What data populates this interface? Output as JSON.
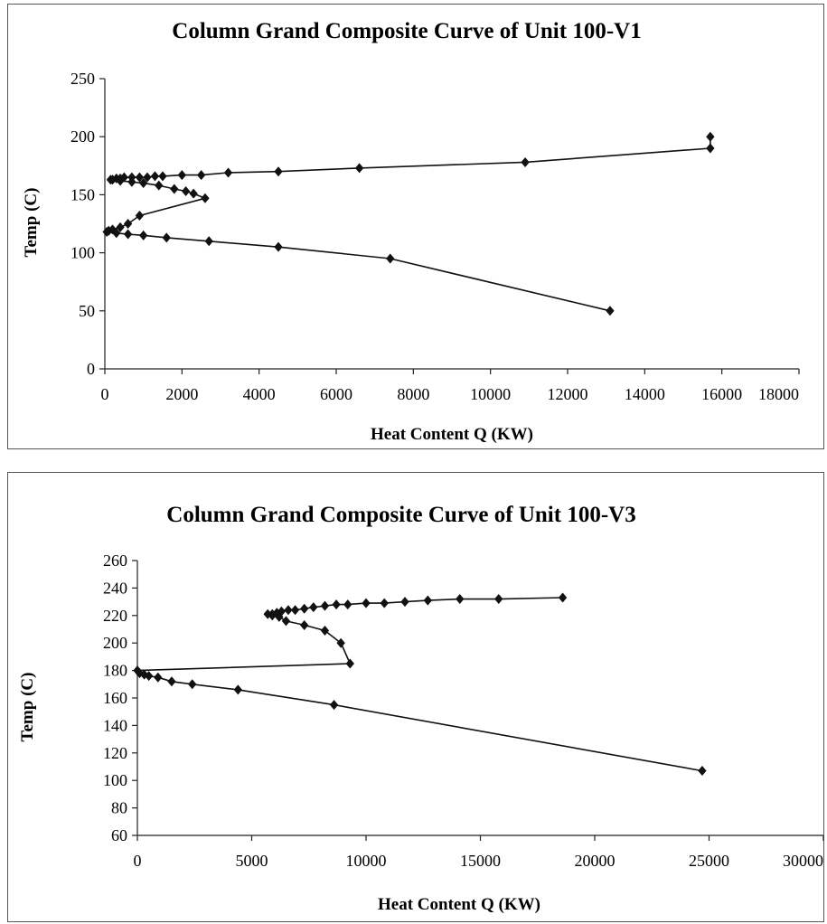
{
  "chart_data": [
    {
      "type": "line",
      "title": "Column Grand Composite Curve of Unit 100-V1",
      "xlabel": "Heat Content Q (KW)",
      "ylabel": "Temp (C)",
      "xlim": [
        0,
        18000
      ],
      "ylim": [
        0,
        250
      ],
      "xticks": [
        "0",
        "2000",
        "4000",
        "6000",
        "8000",
        "10000",
        "12000",
        "14000",
        "16000",
        "18000"
      ],
      "yticks": [
        "0",
        "50",
        "100",
        "150",
        "200",
        "250"
      ],
      "grid": false,
      "marker": "diamond",
      "series": [
        {
          "points": [
            [
              15700,
              200
            ],
            [
              15700,
              190
            ],
            [
              10900,
              178
            ],
            [
              6600,
              173
            ],
            [
              4500,
              170
            ],
            [
              3200,
              169
            ],
            [
              2500,
              167
            ],
            [
              2000,
              167
            ],
            [
              1500,
              166
            ],
            [
              1300,
              166
            ],
            [
              1100,
              165
            ],
            [
              900,
              165
            ],
            [
              700,
              165
            ],
            [
              500,
              165
            ],
            [
              400,
              164
            ],
            [
              300,
              164
            ],
            [
              200,
              163
            ],
            [
              150,
              163
            ],
            [
              400,
              162
            ],
            [
              700,
              161
            ],
            [
              1000,
              160
            ],
            [
              1400,
              158
            ],
            [
              1800,
              155
            ],
            [
              2100,
              153
            ],
            [
              2300,
              151
            ],
            [
              2600,
              147
            ],
            [
              900,
              132
            ],
            [
              600,
              125
            ],
            [
              400,
              122
            ],
            [
              200,
              120
            ],
            [
              100,
              119
            ],
            [
              50,
              118
            ],
            [
              300,
              117
            ],
            [
              600,
              116
            ],
            [
              1000,
              115
            ],
            [
              1600,
              113
            ],
            [
              2700,
              110
            ],
            [
              4500,
              105
            ],
            [
              7400,
              95
            ],
            [
              13100,
              50
            ]
          ]
        }
      ]
    },
    {
      "type": "line",
      "title": "Column Grand Composite Curve of Unit 100-V3",
      "xlabel": "Heat Content Q (KW)",
      "ylabel": "Temp (C)",
      "xlim": [
        0,
        30000
      ],
      "ylim": [
        60,
        260
      ],
      "xticks": [
        "0",
        "5000",
        "10000",
        "15000",
        "20000",
        "25000",
        "30000"
      ],
      "yticks": [
        "60",
        "80",
        "100",
        "120",
        "140",
        "160",
        "180",
        "200",
        "220",
        "240",
        "260"
      ],
      "grid": false,
      "marker": "diamond",
      "series": [
        {
          "points": [
            [
              18600,
              233
            ],
            [
              15800,
              232
            ],
            [
              14100,
              232
            ],
            [
              12700,
              231
            ],
            [
              11700,
              230
            ],
            [
              10800,
              229
            ],
            [
              10000,
              229
            ],
            [
              9200,
              228
            ],
            [
              8700,
              228
            ],
            [
              8200,
              227
            ],
            [
              7700,
              226
            ],
            [
              7300,
              225
            ],
            [
              6900,
              224
            ],
            [
              6600,
              224
            ],
            [
              6300,
              223
            ],
            [
              6100,
              222
            ],
            [
              5900,
              221
            ],
            [
              5700,
              221
            ],
            [
              5900,
              220
            ],
            [
              6200,
              219
            ],
            [
              6500,
              216
            ],
            [
              7300,
              213
            ],
            [
              8200,
              209
            ],
            [
              8900,
              200
            ],
            [
              9300,
              185
            ],
            [
              0,
              180
            ],
            [
              100,
              178
            ],
            [
              300,
              177
            ],
            [
              500,
              176
            ],
            [
              900,
              175
            ],
            [
              1500,
              172
            ],
            [
              2400,
              170
            ],
            [
              4400,
              166
            ],
            [
              8600,
              155
            ],
            [
              24700,
              107
            ]
          ]
        }
      ]
    }
  ]
}
